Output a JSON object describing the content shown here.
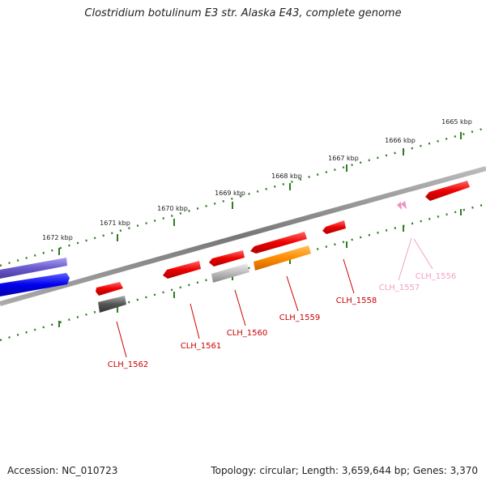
{
  "title": "Clostridium botulinum E3 str. Alaska E43, complete genome",
  "footer": {
    "accession": "Accession: NC_010723",
    "summary": "Topology: circular; Length: 3,659,644 bp; Genes: 3,370"
  },
  "ticks": [
    {
      "label": "1665 kbp"
    },
    {
      "label": "1666 kbp"
    },
    {
      "label": "1667 kbp"
    },
    {
      "label": "1668 kbp"
    },
    {
      "label": "1669 kbp"
    },
    {
      "label": "1670 kbp"
    },
    {
      "label": "1671 kbp"
    },
    {
      "label": "1672 kbp"
    }
  ],
  "genes": [
    {
      "label": "CLH_1556",
      "color": "#f0a0c8"
    },
    {
      "label": "CLH_1557",
      "color": "#f0a0c8"
    },
    {
      "label": "CLH_1558",
      "color": "#cc0000"
    },
    {
      "label": "CLH_1559",
      "color": "#cc0000"
    },
    {
      "label": "CLH_1560",
      "color": "#cc0000"
    },
    {
      "label": "CLH_1561",
      "color": "#cc0000"
    },
    {
      "label": "CLH_1562",
      "color": "#cc0000"
    }
  ],
  "colors": {
    "cds_red": "#ee1111",
    "cds_orange": "#ff8c00",
    "cds_blue": "#1010ee",
    "cds_purple": "#6a5acd",
    "cds_gray": "#bbbbbb",
    "cds_darkgray": "#555555",
    "tick_green": "#2e7d20",
    "backbone": "#888888",
    "pink": "#f090c0"
  }
}
